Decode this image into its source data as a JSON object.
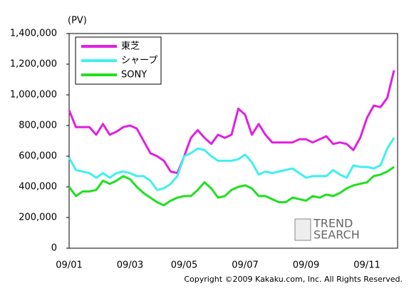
{
  "chart_data": {
    "type": "line",
    "unit_label": "(PV)",
    "copyright": "Copyright ©2009 Kakaku.com, Inc. All Rights Reserved.",
    "logo": [
      "TREND",
      "SEARCH"
    ],
    "categories": [
      "09/01",
      null,
      null,
      null,
      null,
      null,
      null,
      null,
      null,
      "09/03",
      null,
      null,
      null,
      null,
      null,
      null,
      null,
      "09/05",
      null,
      null,
      null,
      null,
      null,
      null,
      null,
      null,
      "09/07",
      null,
      null,
      null,
      null,
      null,
      null,
      null,
      null,
      "09/09",
      null,
      null,
      null,
      null,
      null,
      null,
      null,
      null,
      "09/11",
      null,
      null,
      null,
      null
    ],
    "series": [
      {
        "name": "東芝",
        "color": "#e020e0",
        "values": [
          900000,
          790000,
          790000,
          790000,
          740000,
          810000,
          740000,
          760000,
          790000,
          800000,
          780000,
          700000,
          620000,
          600000,
          570000,
          500000,
          490000,
          600000,
          720000,
          770000,
          720000,
          680000,
          740000,
          720000,
          740000,
          910000,
          870000,
          740000,
          810000,
          740000,
          690000,
          690000,
          690000,
          690000,
          710000,
          710000,
          690000,
          710000,
          730000,
          680000,
          690000,
          680000,
          640000,
          720000,
          850000,
          930000,
          920000,
          980000,
          1160000
        ]
      },
      {
        "name": "シャープ",
        "color": "#40f0f0",
        "values": [
          590000,
          510000,
          500000,
          490000,
          460000,
          490000,
          460000,
          490000,
          500000,
          490000,
          470000,
          470000,
          440000,
          380000,
          390000,
          420000,
          470000,
          600000,
          620000,
          650000,
          640000,
          600000,
          570000,
          570000,
          570000,
          580000,
          610000,
          560000,
          480000,
          500000,
          490000,
          500000,
          510000,
          520000,
          490000,
          460000,
          470000,
          470000,
          470000,
          510000,
          480000,
          460000,
          540000,
          530000,
          530000,
          520000,
          540000,
          650000,
          720000
        ]
      },
      {
        "name": "SONY",
        "color": "#20e020",
        "values": [
          400000,
          340000,
          370000,
          370000,
          380000,
          440000,
          420000,
          440000,
          470000,
          450000,
          400000,
          360000,
          330000,
          300000,
          280000,
          310000,
          330000,
          340000,
          340000,
          380000,
          430000,
          390000,
          330000,
          340000,
          380000,
          400000,
          410000,
          390000,
          340000,
          340000,
          320000,
          300000,
          300000,
          330000,
          320000,
          310000,
          340000,
          330000,
          350000,
          340000,
          360000,
          390000,
          410000,
          420000,
          430000,
          470000,
          480000,
          500000,
          530000
        ]
      }
    ],
    "ylim": [
      0,
      1400000
    ],
    "yticks": [
      0,
      {
        "value": 200000,
        "label": "200,000"
      },
      {
        "value": 400000,
        "label": "400,000"
      },
      {
        "value": 600000,
        "label": "600,000"
      },
      {
        "value": 800000,
        "label": "800,000"
      },
      {
        "value": 1000000,
        "label": "1,000,000"
      },
      {
        "value": 1200000,
        "label": "1,200,000"
      },
      {
        "value": 1400000,
        "label": "1,400,000"
      }
    ],
    "grid": false
  }
}
